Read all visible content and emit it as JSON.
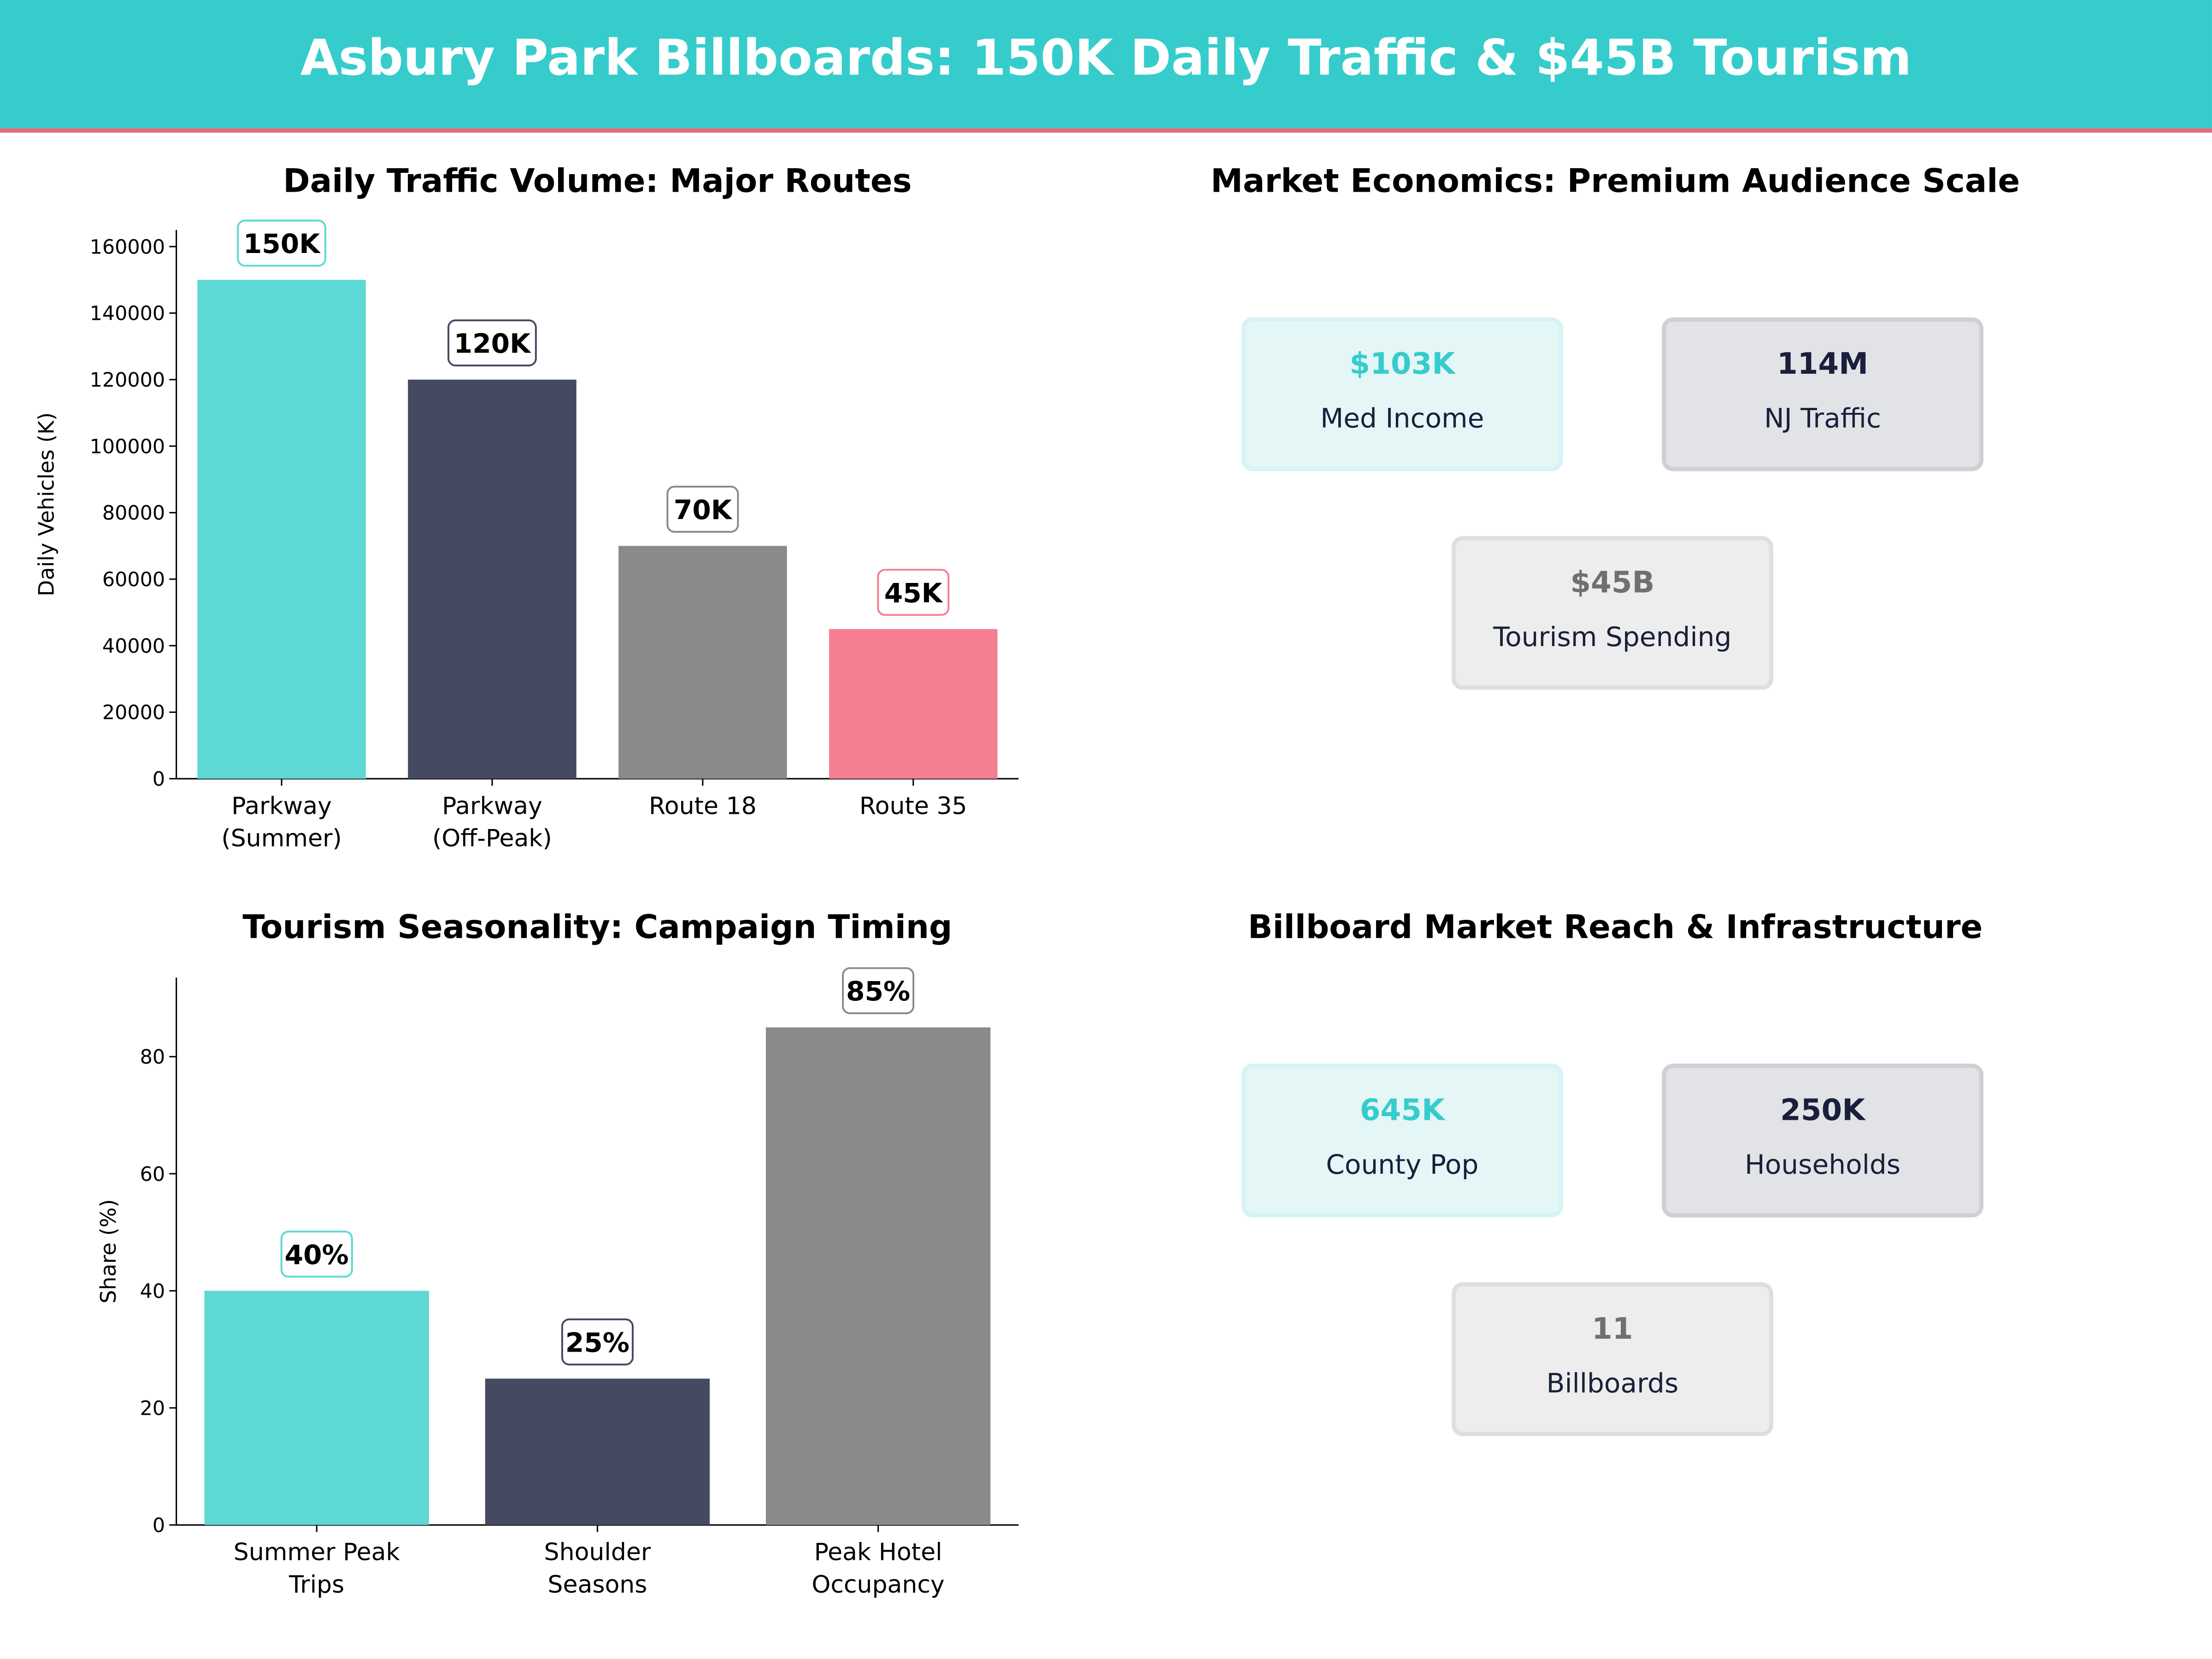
{
  "title": "Asbury Park Billboards: 150K Daily Traffic & $45B Tourism",
  "colors": {
    "header": "#36CCCC",
    "accent_line": "#E96A7A",
    "teal": "#5DD8D4",
    "navy": "#464A60",
    "gray": "#8A8A8A",
    "pink": "#F67E92"
  },
  "chart_data": [
    {
      "type": "bar",
      "title": "Daily Traffic Volume: Major Routes",
      "ylabel": "Daily Vehicles (K)",
      "xlabel": "",
      "categories": [
        "Parkway\n(Summer)",
        "Parkway\n(Off-Peak)",
        "Route 18",
        "Route 35"
      ],
      "values": [
        150000,
        120000,
        70000,
        45000
      ],
      "data_labels": [
        "150K",
        "120K",
        "70K",
        "45K"
      ],
      "bar_colors": [
        "#5DD8D4",
        "#464A60",
        "#8A8A8A",
        "#F67E92"
      ],
      "ylim": [
        0,
        165000
      ],
      "yticks": [
        0,
        20000,
        40000,
        60000,
        80000,
        100000,
        120000,
        140000,
        160000
      ],
      "grid": false
    },
    {
      "type": "bar",
      "title": "Tourism Seasonality: Campaign Timing",
      "ylabel": "Share (%)",
      "xlabel": "",
      "categories": [
        "Summer Peak\nTrips",
        "Shoulder\nSeasons",
        "Peak Hotel\nOccupancy"
      ],
      "values": [
        40,
        25,
        85
      ],
      "data_labels": [
        "40%",
        "25%",
        "85%"
      ],
      "bar_colors": [
        "#5DD8D4",
        "#464A60",
        "#8A8A8A"
      ],
      "ylim": [
        0,
        93.5
      ],
      "yticks": [
        0,
        20,
        40,
        60,
        80
      ],
      "grid": false
    }
  ],
  "panels": {
    "economics": {
      "title": "Market Economics: Premium Audience Scale",
      "cards": [
        {
          "value": "$103K",
          "label": "Med Income"
        },
        {
          "value": "114M",
          "label": "NJ Traffic"
        },
        {
          "value": "$45B",
          "label": "Tourism Spending"
        }
      ]
    },
    "reach": {
      "title": "Billboard Market Reach & Infrastructure",
      "cards": [
        {
          "value": "645K",
          "label": "County Pop"
        },
        {
          "value": "250K",
          "label": "Households"
        },
        {
          "value": "11",
          "label": "Billboards"
        }
      ]
    }
  }
}
